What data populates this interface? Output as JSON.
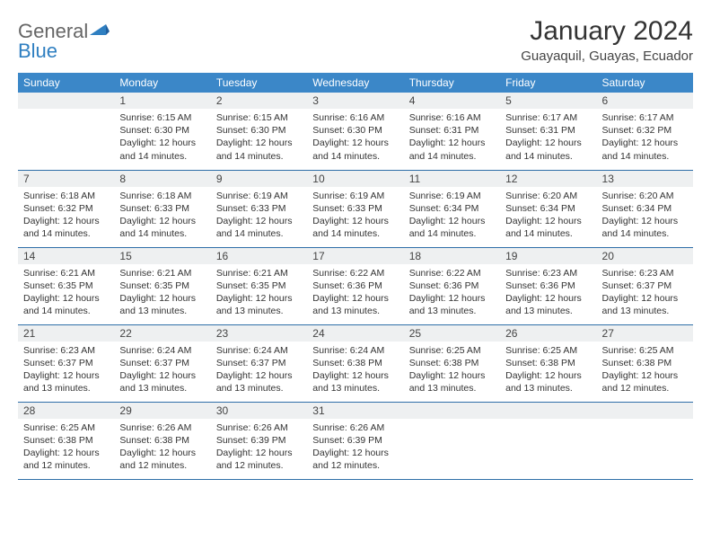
{
  "logo": {
    "text1": "General",
    "text2": "Blue"
  },
  "title": "January 2024",
  "subtitle": "Guayaquil, Guayas, Ecuador",
  "colors": {
    "header_bg": "#3b87c8",
    "header_text": "#ffffff",
    "daynum_bg": "#eef0f1",
    "row_border": "#2f6fa8",
    "logo_accent": "#2f7fc1"
  },
  "weekdays": [
    "Sunday",
    "Monday",
    "Tuesday",
    "Wednesday",
    "Thursday",
    "Friday",
    "Saturday"
  ],
  "weeks": [
    [
      {
        "num": "",
        "text": ""
      },
      {
        "num": "1",
        "text": "Sunrise: 6:15 AM\nSunset: 6:30 PM\nDaylight: 12 hours and 14 minutes."
      },
      {
        "num": "2",
        "text": "Sunrise: 6:15 AM\nSunset: 6:30 PM\nDaylight: 12 hours and 14 minutes."
      },
      {
        "num": "3",
        "text": "Sunrise: 6:16 AM\nSunset: 6:30 PM\nDaylight: 12 hours and 14 minutes."
      },
      {
        "num": "4",
        "text": "Sunrise: 6:16 AM\nSunset: 6:31 PM\nDaylight: 12 hours and 14 minutes."
      },
      {
        "num": "5",
        "text": "Sunrise: 6:17 AM\nSunset: 6:31 PM\nDaylight: 12 hours and 14 minutes."
      },
      {
        "num": "6",
        "text": "Sunrise: 6:17 AM\nSunset: 6:32 PM\nDaylight: 12 hours and 14 minutes."
      }
    ],
    [
      {
        "num": "7",
        "text": "Sunrise: 6:18 AM\nSunset: 6:32 PM\nDaylight: 12 hours and 14 minutes."
      },
      {
        "num": "8",
        "text": "Sunrise: 6:18 AM\nSunset: 6:33 PM\nDaylight: 12 hours and 14 minutes."
      },
      {
        "num": "9",
        "text": "Sunrise: 6:19 AM\nSunset: 6:33 PM\nDaylight: 12 hours and 14 minutes."
      },
      {
        "num": "10",
        "text": "Sunrise: 6:19 AM\nSunset: 6:33 PM\nDaylight: 12 hours and 14 minutes."
      },
      {
        "num": "11",
        "text": "Sunrise: 6:19 AM\nSunset: 6:34 PM\nDaylight: 12 hours and 14 minutes."
      },
      {
        "num": "12",
        "text": "Sunrise: 6:20 AM\nSunset: 6:34 PM\nDaylight: 12 hours and 14 minutes."
      },
      {
        "num": "13",
        "text": "Sunrise: 6:20 AM\nSunset: 6:34 PM\nDaylight: 12 hours and 14 minutes."
      }
    ],
    [
      {
        "num": "14",
        "text": "Sunrise: 6:21 AM\nSunset: 6:35 PM\nDaylight: 12 hours and 14 minutes."
      },
      {
        "num": "15",
        "text": "Sunrise: 6:21 AM\nSunset: 6:35 PM\nDaylight: 12 hours and 13 minutes."
      },
      {
        "num": "16",
        "text": "Sunrise: 6:21 AM\nSunset: 6:35 PM\nDaylight: 12 hours and 13 minutes."
      },
      {
        "num": "17",
        "text": "Sunrise: 6:22 AM\nSunset: 6:36 PM\nDaylight: 12 hours and 13 minutes."
      },
      {
        "num": "18",
        "text": "Sunrise: 6:22 AM\nSunset: 6:36 PM\nDaylight: 12 hours and 13 minutes."
      },
      {
        "num": "19",
        "text": "Sunrise: 6:23 AM\nSunset: 6:36 PM\nDaylight: 12 hours and 13 minutes."
      },
      {
        "num": "20",
        "text": "Sunrise: 6:23 AM\nSunset: 6:37 PM\nDaylight: 12 hours and 13 minutes."
      }
    ],
    [
      {
        "num": "21",
        "text": "Sunrise: 6:23 AM\nSunset: 6:37 PM\nDaylight: 12 hours and 13 minutes."
      },
      {
        "num": "22",
        "text": "Sunrise: 6:24 AM\nSunset: 6:37 PM\nDaylight: 12 hours and 13 minutes."
      },
      {
        "num": "23",
        "text": "Sunrise: 6:24 AM\nSunset: 6:37 PM\nDaylight: 12 hours and 13 minutes."
      },
      {
        "num": "24",
        "text": "Sunrise: 6:24 AM\nSunset: 6:38 PM\nDaylight: 12 hours and 13 minutes."
      },
      {
        "num": "25",
        "text": "Sunrise: 6:25 AM\nSunset: 6:38 PM\nDaylight: 12 hours and 13 minutes."
      },
      {
        "num": "26",
        "text": "Sunrise: 6:25 AM\nSunset: 6:38 PM\nDaylight: 12 hours and 13 minutes."
      },
      {
        "num": "27",
        "text": "Sunrise: 6:25 AM\nSunset: 6:38 PM\nDaylight: 12 hours and 12 minutes."
      }
    ],
    [
      {
        "num": "28",
        "text": "Sunrise: 6:25 AM\nSunset: 6:38 PM\nDaylight: 12 hours and 12 minutes."
      },
      {
        "num": "29",
        "text": "Sunrise: 6:26 AM\nSunset: 6:38 PM\nDaylight: 12 hours and 12 minutes."
      },
      {
        "num": "30",
        "text": "Sunrise: 6:26 AM\nSunset: 6:39 PM\nDaylight: 12 hours and 12 minutes."
      },
      {
        "num": "31",
        "text": "Sunrise: 6:26 AM\nSunset: 6:39 PM\nDaylight: 12 hours and 12 minutes."
      },
      {
        "num": "",
        "text": ""
      },
      {
        "num": "",
        "text": ""
      },
      {
        "num": "",
        "text": ""
      }
    ]
  ]
}
